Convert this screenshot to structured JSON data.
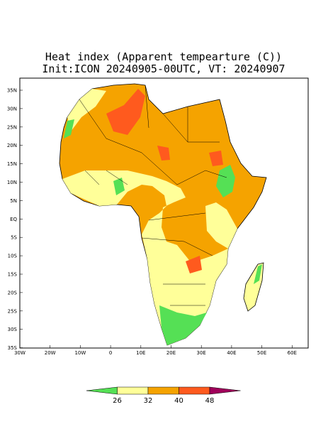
{
  "header": {
    "title": "Heat index (Apparent tempearture (C))",
    "subtitle": "Init:ICON 20240905-00UTC, VT: 20240907"
  },
  "map": {
    "lat_labels": [
      "35N",
      "30N",
      "25N",
      "20N",
      "15N",
      "10N",
      "5N",
      "EQ",
      "5S",
      "10S",
      "15S",
      "20S",
      "25S",
      "30S",
      "35S"
    ],
    "lon_labels": [
      "30W",
      "20W",
      "10W",
      "0",
      "10E",
      "20E",
      "30E",
      "40E",
      "50E",
      "60E"
    ]
  },
  "colorbar": {
    "labels": [
      "26",
      "32",
      "40",
      "48"
    ],
    "colors": [
      "#55e055",
      "#ffff99",
      "#f5a300",
      "#ff5a1e",
      "#a0005a"
    ]
  }
}
